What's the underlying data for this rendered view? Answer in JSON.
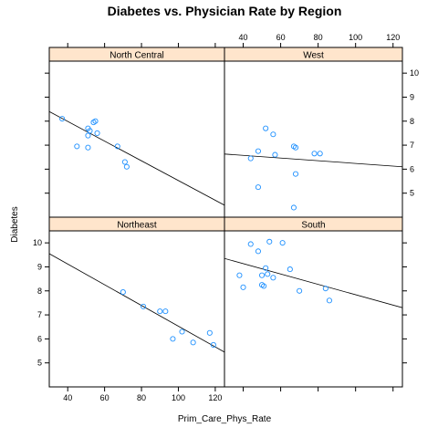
{
  "chart_data": {
    "type": "scatter",
    "title": "Diabetes vs. Physician Rate by Region",
    "xlabel": "Prim_Care_Phys_Rate",
    "ylabel": "Diabetes",
    "xlim": [
      30,
      125
    ],
    "ylim": [
      4,
      10.5
    ],
    "x_ticks": [
      40,
      60,
      80,
      100,
      120
    ],
    "y_ticks": [
      5,
      6,
      7,
      8,
      9,
      10
    ],
    "point_color": "#1e90ff",
    "strip_color": "#ffe5cc",
    "grid": false,
    "panels": [
      {
        "name": "North Central",
        "points": [
          {
            "x": 37,
            "y": 8.1
          },
          {
            "x": 45,
            "y": 6.95
          },
          {
            "x": 51,
            "y": 6.9
          },
          {
            "x": 51,
            "y": 7.4
          },
          {
            "x": 51,
            "y": 7.7
          },
          {
            "x": 52,
            "y": 7.6
          },
          {
            "x": 54,
            "y": 7.95
          },
          {
            "x": 55,
            "y": 8.0
          },
          {
            "x": 56,
            "y": 7.5
          },
          {
            "x": 67,
            "y": 6.95
          },
          {
            "x": 71,
            "y": 6.3
          },
          {
            "x": 72,
            "y": 6.1
          }
        ],
        "fit": {
          "x0": 30,
          "y0": 8.4,
          "x1": 125,
          "y1": 4.5
        }
      },
      {
        "name": "West",
        "points": [
          {
            "x": 44,
            "y": 6.45
          },
          {
            "x": 48,
            "y": 6.75
          },
          {
            "x": 48,
            "y": 5.25
          },
          {
            "x": 52,
            "y": 7.7
          },
          {
            "x": 56,
            "y": 7.45
          },
          {
            "x": 57,
            "y": 6.6
          },
          {
            "x": 67,
            "y": 6.95
          },
          {
            "x": 68,
            "y": 6.9
          },
          {
            "x": 68,
            "y": 5.8
          },
          {
            "x": 67,
            "y": 4.4
          },
          {
            "x": 78,
            "y": 6.65
          },
          {
            "x": 81,
            "y": 6.65
          }
        ],
        "fit": {
          "x0": 30,
          "y0": 6.63,
          "x1": 125,
          "y1": 6.1
        }
      },
      {
        "name": "Northeast",
        "points": [
          {
            "x": 70,
            "y": 7.95
          },
          {
            "x": 81,
            "y": 7.35
          },
          {
            "x": 90,
            "y": 7.15
          },
          {
            "x": 93,
            "y": 7.15
          },
          {
            "x": 97,
            "y": 6.0
          },
          {
            "x": 102,
            "y": 6.3
          },
          {
            "x": 108,
            "y": 5.85
          },
          {
            "x": 117,
            "y": 6.25
          },
          {
            "x": 119,
            "y": 5.75
          }
        ],
        "fit": {
          "x0": 30,
          "y0": 9.55,
          "x1": 125,
          "y1": 5.45
        }
      },
      {
        "name": "South",
        "points": [
          {
            "x": 38,
            "y": 8.65
          },
          {
            "x": 40,
            "y": 8.15
          },
          {
            "x": 44,
            "y": 9.95
          },
          {
            "x": 48,
            "y": 9.65
          },
          {
            "x": 50,
            "y": 8.65
          },
          {
            "x": 50,
            "y": 8.25
          },
          {
            "x": 51,
            "y": 8.2
          },
          {
            "x": 52,
            "y": 8.95
          },
          {
            "x": 53,
            "y": 8.7
          },
          {
            "x": 54,
            "y": 10.05
          },
          {
            "x": 56,
            "y": 8.55
          },
          {
            "x": 61,
            "y": 10.0
          },
          {
            "x": 65,
            "y": 8.9
          },
          {
            "x": 70,
            "y": 8.0
          },
          {
            "x": 84,
            "y": 8.1
          },
          {
            "x": 86,
            "y": 7.6
          }
        ],
        "fit": {
          "x0": 30,
          "y0": 9.35,
          "x1": 125,
          "y1": 7.3
        }
      }
    ]
  }
}
